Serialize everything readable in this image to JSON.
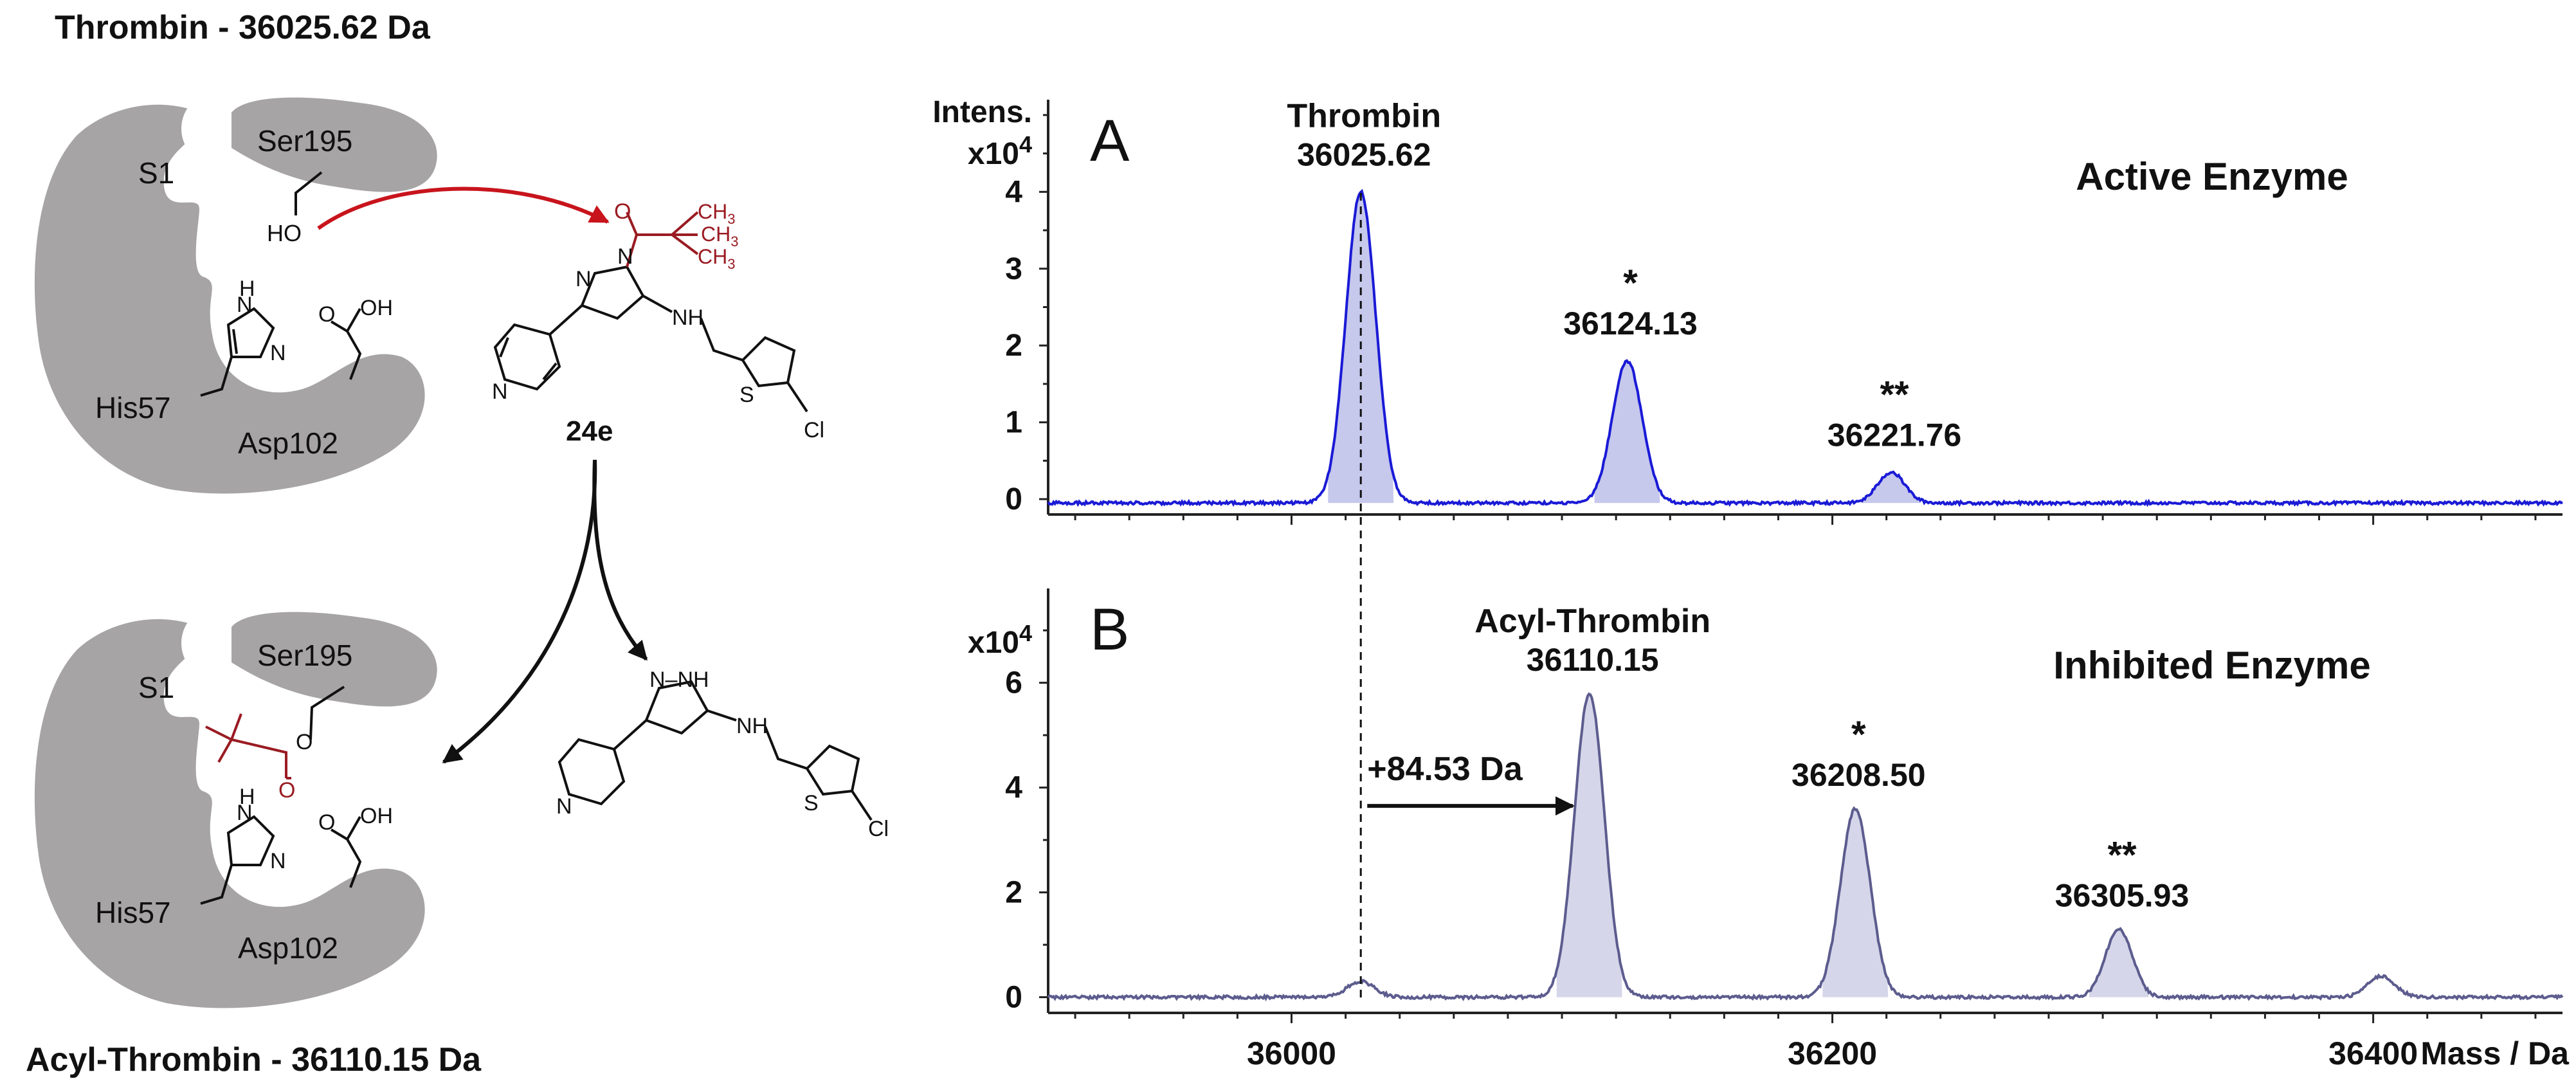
{
  "colors": {
    "protein": "#a6a4a4",
    "acyl": "#9a1b22",
    "arrow_red": "#c8141c",
    "trace_a": "#1a1ad6",
    "trace_b": "#5c5c8e",
    "fill_a": "#c6c8ec",
    "fill_b": "#d6d6ea",
    "axis": "#222222"
  },
  "scheme": {
    "top_title": "Thrombin - 36025.62 Da",
    "bottom_title": "Acyl-Thrombin - 36110.15 Da",
    "s1": "S1",
    "ser": "Ser195",
    "his": "His57",
    "asp": "Asp102",
    "ho": "HO",
    "oh": "OH",
    "o": "O",
    "n": "N",
    "h": "H",
    "nh": "NH",
    "nn": "N–N",
    "cl": "Cl",
    "s": "S",
    "ch3": "CH",
    "ch3_sub": "3",
    "compound": "24e"
  },
  "chart_data": [
    {
      "type": "line",
      "panel_letter": "A",
      "title": "Active Enzyme",
      "ylabel": "Intens.",
      "y_scale_base": "x10",
      "y_scale_exp": "4",
      "xlabel": "Mass / Da",
      "xlim": [
        35910,
        36470
      ],
      "ylim": [
        -0.2,
        5.2
      ],
      "yticks": [
        0,
        1,
        2,
        3,
        4
      ],
      "xticks": [
        36000,
        36200,
        36400
      ],
      "xtick_labels": [
        "36000",
        "36200",
        "36400"
      ],
      "peaks": [
        {
          "mass": 36025.62,
          "height": 4.05,
          "width": 5.5,
          "label_top": "Thrombin",
          "label": "36025.62",
          "marker": ""
        },
        {
          "mass": 36124.13,
          "height": 1.85,
          "width": 5.5,
          "label_top": "",
          "label": "36124.13",
          "marker": "*"
        },
        {
          "mass": 36221.76,
          "height": 0.4,
          "width": 5.0,
          "label_top": "",
          "label": "36221.76",
          "marker": "**"
        }
      ],
      "baseline": -0.05
    },
    {
      "type": "line",
      "panel_letter": "B",
      "title": "Inhibited Enzyme",
      "ylabel": "",
      "y_scale_base": "x10",
      "y_scale_exp": "4",
      "xlabel": "Mass / Da",
      "xlim": [
        35910,
        36470
      ],
      "ylim": [
        -0.3,
        7.8
      ],
      "yticks": [
        0,
        2,
        4,
        6
      ],
      "xticks": [
        36000,
        36200,
        36400
      ],
      "xtick_labels": [
        "36000",
        "36200",
        "36400"
      ],
      "peaks": [
        {
          "mass": 36025.62,
          "height": 0.3,
          "width": 5.0,
          "label_top": "",
          "label": "",
          "marker": ""
        },
        {
          "mass": 36110.15,
          "height": 5.8,
          "width": 5.5,
          "label_top": "Acyl-Thrombin",
          "label": "36110.15",
          "marker": ""
        },
        {
          "mass": 36208.5,
          "height": 3.6,
          "width": 5.5,
          "label_top": "",
          "label": "36208.50",
          "marker": "*"
        },
        {
          "mass": 36305.93,
          "height": 1.3,
          "width": 5.0,
          "label_top": "",
          "label": "36305.93",
          "marker": "**"
        },
        {
          "mass": 36403.0,
          "height": 0.4,
          "width": 5.0,
          "label_top": "",
          "label": "",
          "marker": ""
        }
      ],
      "baseline": 0.0,
      "shift_annotation": "+84.53 Da"
    }
  ]
}
